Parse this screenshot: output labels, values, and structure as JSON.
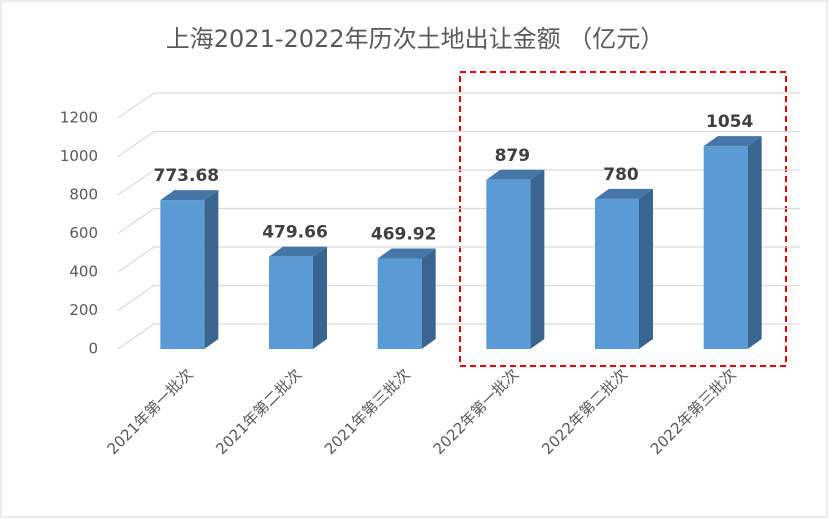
{
  "chart_data": {
    "type": "bar3d",
    "title": "上海2021-2022年历次土地出让金额 （亿元）",
    "categories": [
      "2021年第一批次",
      "2021年第二批次",
      "2021年第三批次",
      "2022年第一批次",
      "2022年第二批次",
      "2022年第三批次"
    ],
    "values": [
      773.68,
      479.66,
      469.92,
      879,
      780,
      1054
    ],
    "color": "#5b9bd5",
    "ylim": [
      0,
      1200
    ],
    "yticks": [
      0,
      200,
      400,
      600,
      800,
      1000,
      1200
    ],
    "grid": true
  }
}
